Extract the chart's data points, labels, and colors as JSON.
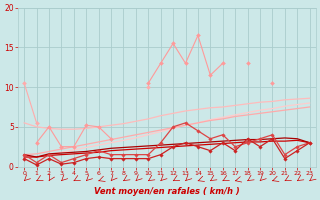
{
  "background_color": "#cce8e8",
  "grid_color": "#aacccc",
  "x_values": [
    0,
    1,
    2,
    3,
    4,
    5,
    6,
    7,
    8,
    9,
    10,
    11,
    12,
    13,
    14,
    15,
    16,
    17,
    18,
    19,
    20,
    21,
    22,
    23
  ],
  "series": [
    {
      "color": "#ffaaaa",
      "linewidth": 0.8,
      "marker": "D",
      "markersize": 2.0,
      "y": [
        10.5,
        5.5,
        null,
        null,
        null,
        null,
        null,
        null,
        null,
        null,
        10.0,
        null,
        null,
        null,
        null,
        null,
        null,
        null,
        null,
        null,
        null,
        null,
        null,
        null
      ]
    },
    {
      "color": "#ff9999",
      "linewidth": 0.8,
      "marker": "D",
      "markersize": 2.0,
      "y": [
        null,
        3.0,
        5.0,
        2.5,
        2.5,
        5.2,
        5.0,
        3.5,
        null,
        null,
        10.5,
        13.0,
        15.5,
        13.0,
        16.5,
        11.5,
        13.0,
        null,
        13.0,
        null,
        10.5,
        null,
        null,
        null
      ]
    },
    {
      "color": "#ffbbbb",
      "linewidth": 0.9,
      "marker": null,
      "markersize": 0,
      "y": [
        5.5,
        5.0,
        4.8,
        4.7,
        4.7,
        4.8,
        5.0,
        5.2,
        5.4,
        5.7,
        6.0,
        6.4,
        6.7,
        7.0,
        7.2,
        7.4,
        7.5,
        7.7,
        7.9,
        8.1,
        8.2,
        8.4,
        8.5,
        8.6
      ]
    },
    {
      "color": "#ffcccc",
      "linewidth": 0.9,
      "marker": null,
      "markersize": 0,
      "y": [
        1.0,
        1.2,
        1.5,
        1.8,
        2.1,
        2.4,
        2.7,
        3.0,
        3.3,
        3.6,
        4.0,
        4.4,
        4.8,
        5.2,
        5.5,
        5.9,
        6.2,
        6.5,
        6.8,
        7.1,
        7.3,
        7.6,
        7.8,
        8.0
      ]
    },
    {
      "color": "#ffaaaa",
      "linewidth": 0.9,
      "marker": null,
      "markersize": 0,
      "y": [
        1.5,
        1.6,
        1.9,
        2.2,
        2.5,
        2.8,
        3.1,
        3.4,
        3.7,
        4.0,
        4.3,
        4.6,
        4.9,
        5.2,
        5.5,
        5.8,
        6.0,
        6.3,
        6.5,
        6.7,
        6.9,
        7.1,
        7.3,
        7.5
      ]
    },
    {
      "color": "#dd4444",
      "linewidth": 0.9,
      "marker": "D",
      "markersize": 1.8,
      "y": [
        1.5,
        0.5,
        1.5,
        0.5,
        1.0,
        1.5,
        2.0,
        1.5,
        1.5,
        1.5,
        1.5,
        3.0,
        5.0,
        5.5,
        4.5,
        3.5,
        4.0,
        2.5,
        3.0,
        3.5,
        4.0,
        1.5,
        2.5,
        3.0
      ]
    },
    {
      "color": "#cc2222",
      "linewidth": 0.9,
      "marker": "D",
      "markersize": 1.8,
      "y": [
        1.0,
        0.2,
        1.0,
        0.3,
        0.5,
        1.0,
        1.2,
        1.0,
        1.0,
        1.0,
        1.0,
        1.5,
        2.5,
        3.0,
        2.5,
        2.0,
        3.0,
        2.0,
        3.5,
        2.5,
        3.5,
        1.0,
        2.0,
        3.0
      ]
    },
    {
      "color": "#cc0000",
      "linewidth": 0.9,
      "marker": null,
      "markersize": 0,
      "y": [
        1.2,
        1.2,
        1.4,
        1.5,
        1.6,
        1.7,
        1.8,
        2.0,
        2.1,
        2.2,
        2.3,
        2.4,
        2.5,
        2.6,
        2.7,
        2.8,
        2.9,
        3.0,
        3.1,
        3.1,
        3.2,
        3.2,
        3.3,
        3.0
      ]
    },
    {
      "color": "#aa0000",
      "linewidth": 0.9,
      "marker": null,
      "markersize": 0,
      "y": [
        1.5,
        1.2,
        1.6,
        1.7,
        1.8,
        1.9,
        2.1,
        2.3,
        2.4,
        2.5,
        2.6,
        2.7,
        2.8,
        2.9,
        3.0,
        3.1,
        3.2,
        3.3,
        3.4,
        3.4,
        3.5,
        3.6,
        3.5,
        3.0
      ]
    }
  ],
  "xlabel": "Vent moyen/en rafales ( km/h )",
  "xlim": [
    -0.5,
    23.5
  ],
  "ylim": [
    0,
    20
  ],
  "yticks": [
    0,
    5,
    10,
    15,
    20
  ],
  "xticks": [
    0,
    1,
    2,
    3,
    4,
    5,
    6,
    7,
    8,
    9,
    10,
    11,
    12,
    13,
    14,
    15,
    16,
    17,
    18,
    19,
    20,
    21,
    22,
    23
  ],
  "tick_color": "#cc0000",
  "label_color": "#cc0000",
  "wind_arrow_color": "#cc0000"
}
